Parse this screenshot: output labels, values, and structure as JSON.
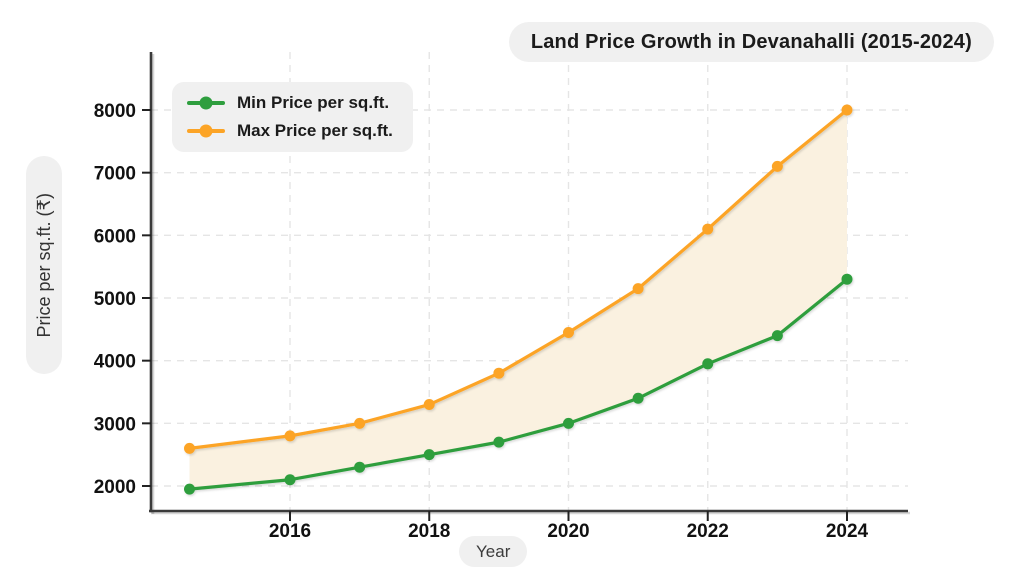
{
  "chart_data": {
    "type": "line",
    "title": "Land Price Growth in Devanahalli (2015-2024)",
    "xlabel": "Year",
    "ylabel": "Price per sq.ft. (₹)",
    "x": [
      2015,
      2016,
      2017,
      2018,
      2019,
      2020,
      2021,
      2022,
      2023,
      2024
    ],
    "series": [
      {
        "id": "min-price",
        "name": "Min Price per sq.ft.",
        "color": "#2E9E3E",
        "values": [
          1950,
          2100,
          2300,
          2500,
          2700,
          3000,
          3400,
          3950,
          4400,
          5300
        ]
      },
      {
        "id": "max-price",
        "name": "Max Price per sq.ft.",
        "color": "#FCA426",
        "values": [
          2600,
          2800,
          3000,
          3300,
          3800,
          4450,
          5150,
          6100,
          7100,
          8000
        ]
      }
    ],
    "fill_between": {
      "enabled": true,
      "color": "#FAF1E0"
    },
    "x_ticks": [
      2016,
      2018,
      2020,
      2022,
      2024
    ],
    "y_ticks": [
      2000,
      3000,
      4000,
      5000,
      6000,
      7000,
      8000
    ],
    "xlim": [
      2014.5,
      2024.9
    ],
    "ylim": [
      1600,
      8950
    ],
    "grid": true,
    "legend_position": "top-left"
  },
  "style": {
    "background": "#FFFFFF",
    "pill_bg": "#F0F0F0",
    "grid_color": "#E5E5E5",
    "spine_color": "#3A3A3A",
    "tick_color": "#222222",
    "tick_label_color": "#111111"
  }
}
